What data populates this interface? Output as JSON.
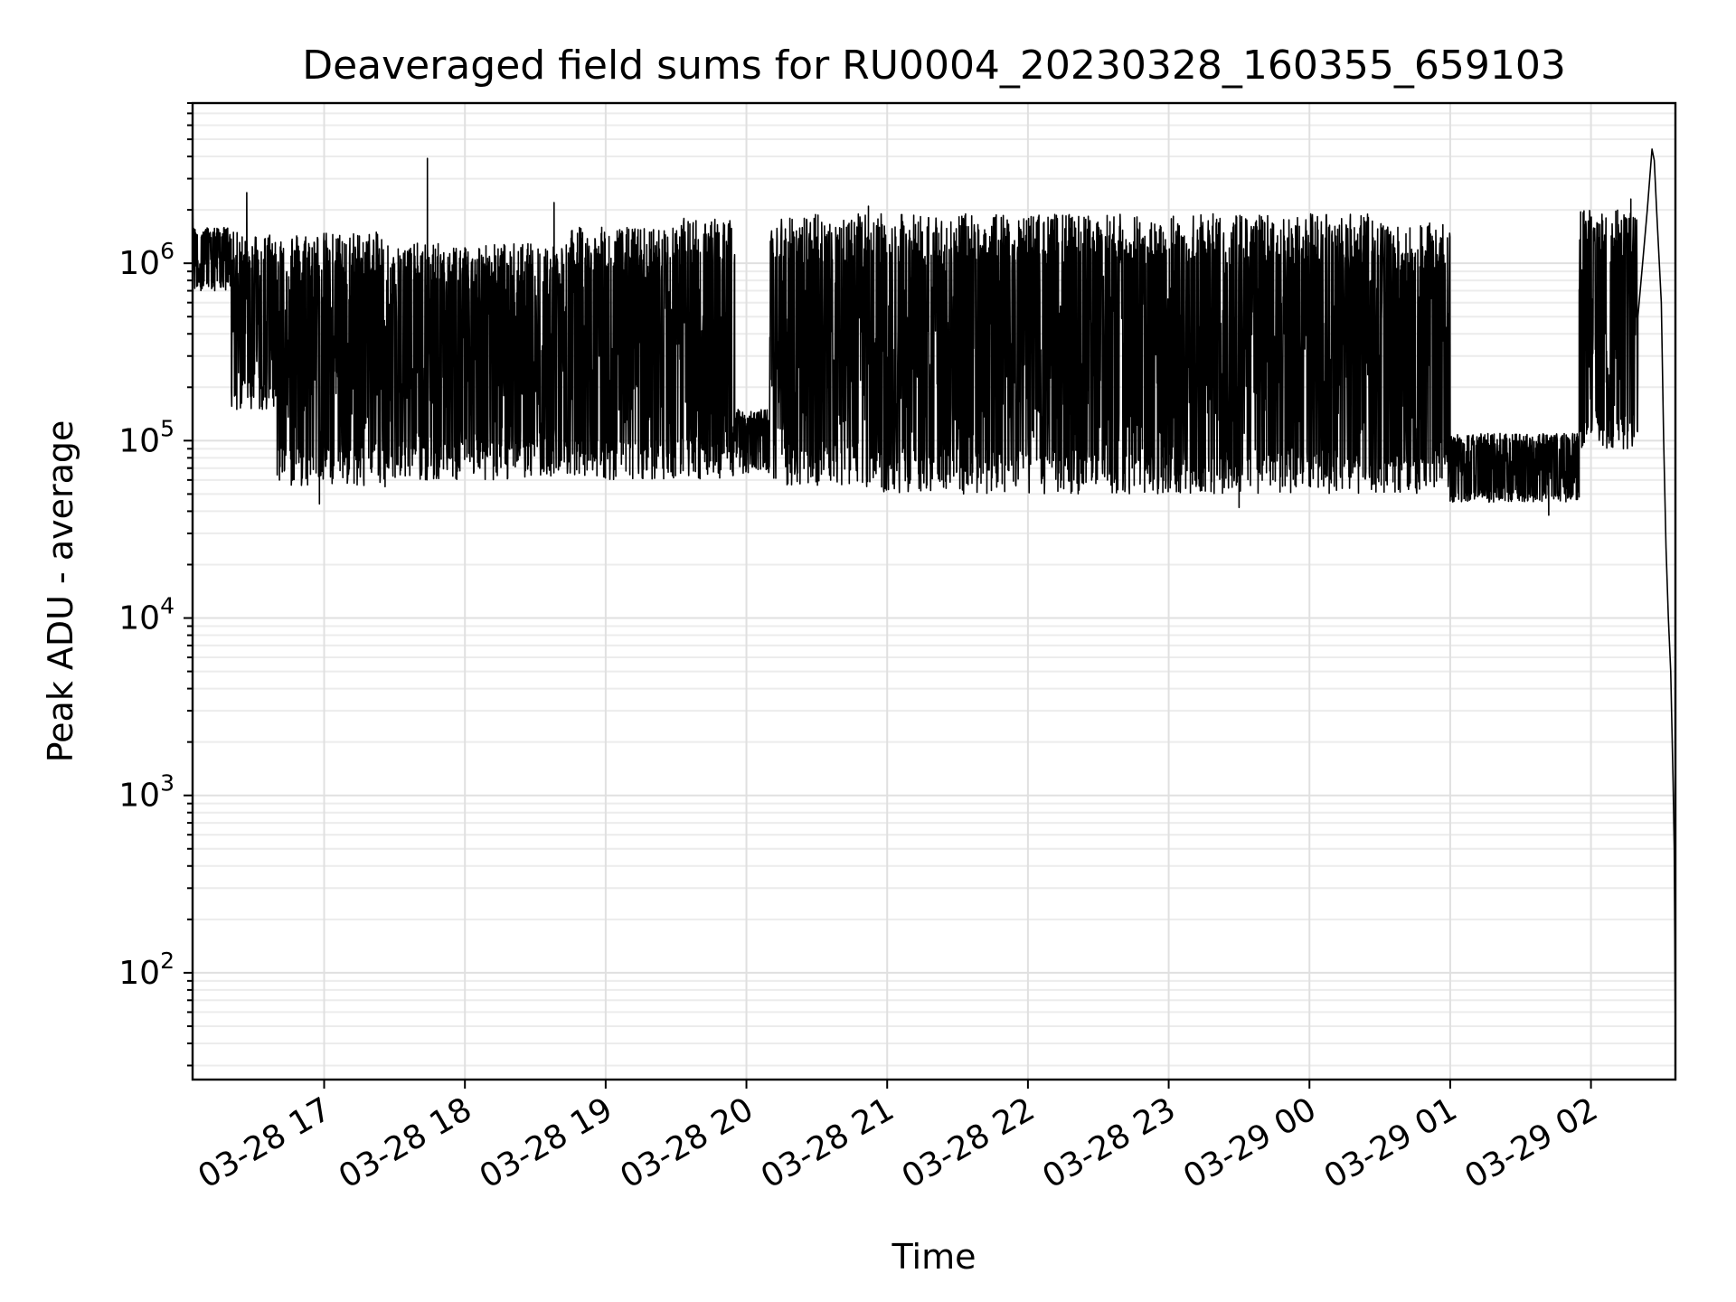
{
  "chart_data": {
    "type": "line",
    "title": "Deaveraged field sums for RU0004_20230328_160355_659103",
    "xlabel": "Time",
    "ylabel": "Peak ADU - average",
    "yscale": "log",
    "ylim": [
      25,
      8000000
    ],
    "xlim": [
      "2023-03-28 16:03:55",
      "2023-03-29 02:36:00"
    ],
    "grid": true,
    "line_color": "#000000",
    "x_ticks": [
      {
        "time": "2023-03-28 17:00",
        "label": "03-28 17"
      },
      {
        "time": "2023-03-28 18:00",
        "label": "03-28 18"
      },
      {
        "time": "2023-03-28 19:00",
        "label": "03-28 19"
      },
      {
        "time": "2023-03-28 20:00",
        "label": "03-28 20"
      },
      {
        "time": "2023-03-28 21:00",
        "label": "03-28 21"
      },
      {
        "time": "2023-03-28 22:00",
        "label": "03-28 22"
      },
      {
        "time": "2023-03-28 23:00",
        "label": "03-28 23"
      },
      {
        "time": "2023-03-29 00:00",
        "label": "03-29 00"
      },
      {
        "time": "2023-03-29 01:00",
        "label": "03-29 01"
      },
      {
        "time": "2023-03-29 02:00",
        "label": "03-29 02"
      }
    ],
    "y_ticks": [
      {
        "value": 100,
        "base": "10",
        "exp": "2"
      },
      {
        "value": 1000,
        "base": "10",
        "exp": "3"
      },
      {
        "value": 10000,
        "base": "10",
        "exp": "4"
      },
      {
        "value": 100000,
        "base": "10",
        "exp": "5"
      },
      {
        "value": 1000000,
        "base": "10",
        "exp": "6"
      }
    ],
    "segments": [
      {
        "start": "2023-03-28 16:04",
        "end": "2023-03-28 16:20",
        "low": 700000,
        "high": 1600000
      },
      {
        "start": "2023-03-28 16:20",
        "end": "2023-03-28 16:40",
        "low": 150000,
        "high": 1500000
      },
      {
        "start": "2023-03-28 16:40",
        "end": "2023-03-28 17:30",
        "low": 55000,
        "high": 1500000
      },
      {
        "start": "2023-03-28 17:30",
        "end": "2023-03-28 18:45",
        "low": 60000,
        "high": 1300000
      },
      {
        "start": "2023-03-28 18:45",
        "end": "2023-03-28 19:30",
        "low": 60000,
        "high": 1600000
      },
      {
        "start": "2023-03-28 19:30",
        "end": "2023-03-28 19:55",
        "low": 60000,
        "high": 1800000
      },
      {
        "start": "2023-03-28 19:55",
        "end": "2023-03-28 20:10",
        "low": 65000,
        "high": 150000
      },
      {
        "start": "2023-03-28 20:10",
        "end": "2023-03-28 20:55",
        "low": 55000,
        "high": 1900000
      },
      {
        "start": "2023-03-28 20:55",
        "end": "2023-03-29 00:30",
        "low": 50000,
        "high": 1900000
      },
      {
        "start": "2023-03-29 00:30",
        "end": "2023-03-29 01:00",
        "low": 50000,
        "high": 1700000
      },
      {
        "start": "2023-03-29 01:00",
        "end": "2023-03-29 01:55",
        "low": 45000,
        "high": 110000
      },
      {
        "start": "2023-03-29 01:55",
        "end": "2023-03-29 02:20",
        "low": 90000,
        "high": 2000000
      }
    ],
    "spikes": [
      {
        "time": "2023-03-28 16:04",
        "value": 2100000
      },
      {
        "time": "2023-03-28 16:27",
        "value": 2500000
      },
      {
        "time": "2023-03-28 16:58",
        "value": 44000
      },
      {
        "time": "2023-03-28 17:44",
        "value": 3900000
      },
      {
        "time": "2023-03-28 18:38",
        "value": 2200000
      },
      {
        "time": "2023-03-28 20:52",
        "value": 2100000
      },
      {
        "time": "2023-03-28 23:30",
        "value": 42000
      },
      {
        "time": "2023-03-29 01:42",
        "value": 38000
      },
      {
        "time": "2023-03-29 02:17",
        "value": 2300000
      }
    ],
    "tail": [
      {
        "time": "2023-03-29 02:20",
        "value": 500000
      },
      {
        "time": "2023-03-29 02:24",
        "value": 2000000
      },
      {
        "time": "2023-03-29 02:26",
        "value": 4400000
      },
      {
        "time": "2023-03-29 02:27",
        "value": 3800000
      },
      {
        "time": "2023-03-29 02:28",
        "value": 2000000
      },
      {
        "time": "2023-03-29 02:30",
        "value": 600000
      },
      {
        "time": "2023-03-29 02:31",
        "value": 100000
      },
      {
        "time": "2023-03-29 02:32",
        "value": 25000
      },
      {
        "time": "2023-03-29 02:33",
        "value": 10000
      },
      {
        "time": "2023-03-29 02:34",
        "value": 5000
      },
      {
        "time": "2023-03-29 02:35",
        "value": 1200
      },
      {
        "time": "2023-03-29 02:35:30",
        "value": 500
      },
      {
        "time": "2023-03-29 02:36",
        "value": 40
      }
    ]
  }
}
